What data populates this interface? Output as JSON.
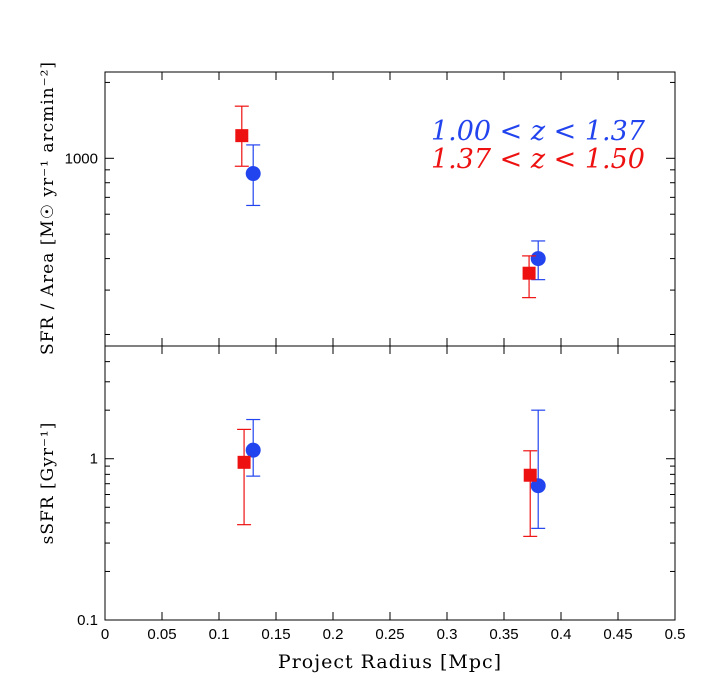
{
  "chart_data": [
    {
      "type": "scatter",
      "panel": "top",
      "scale": "log",
      "ylabel": "SFR / Area [M☉ yr⁻¹ arcmin⁻²]",
      "ylim": [
        180,
        2200
      ],
      "ytick_labels": [
        {
          "value": 1000,
          "label": "1000"
        }
      ],
      "xlim": [
        0,
        0.5
      ],
      "series": [
        {
          "name": "1.00 < z < 1.37",
          "color": "#2244ee",
          "marker": "circle",
          "points": [
            {
              "x": 0.13,
              "y": 870,
              "lo": 650,
              "hi": 1130
            },
            {
              "x": 0.38,
              "y": 400,
              "lo": 330,
              "hi": 470
            }
          ]
        },
        {
          "name": "1.37 < z < 1.50",
          "color": "#ee1111",
          "marker": "square",
          "points": [
            {
              "x": 0.12,
              "y": 1230,
              "lo": 930,
              "hi": 1610
            },
            {
              "x": 0.372,
              "y": 350,
              "lo": 280,
              "hi": 410
            }
          ]
        }
      ]
    },
    {
      "type": "scatter",
      "panel": "bottom",
      "scale": "log",
      "ylabel": "sSFR [Gyr⁻¹]",
      "ylim": [
        0.1,
        5
      ],
      "ytick_labels": [
        {
          "value": 0.1,
          "label": "0.1"
        },
        {
          "value": 1,
          "label": "1"
        }
      ],
      "xlabel": "Project Radius [Mpc]",
      "xlim": [
        0,
        0.5
      ],
      "xticks": [
        0,
        0.05,
        0.1,
        0.15,
        0.2,
        0.25,
        0.3,
        0.35,
        0.4,
        0.45,
        0.5
      ],
      "xtick_labels": [
        "0",
        "0.05",
        "0.1",
        "0.15",
        "0.2",
        "0.25",
        "0.3",
        "0.35",
        "0.4",
        "0.45",
        "0.5"
      ],
      "series": [
        {
          "name": "1.00 < z < 1.37",
          "color": "#2244ee",
          "marker": "circle",
          "points": [
            {
              "x": 0.13,
              "y": 1.13,
              "lo": 0.78,
              "hi": 1.75
            },
            {
              "x": 0.38,
              "y": 0.68,
              "lo": 0.37,
              "hi": 2.0
            }
          ]
        },
        {
          "name": "1.37 < z < 1.50",
          "color": "#ee1111",
          "marker": "square",
          "points": [
            {
              "x": 0.122,
              "y": 0.95,
              "lo": 0.39,
              "hi": 1.52
            },
            {
              "x": 0.373,
              "y": 0.79,
              "lo": 0.33,
              "hi": 1.12
            }
          ]
        }
      ]
    }
  ],
  "legend": {
    "entries": [
      {
        "text": "1.00 < z < 1.37",
        "color": "#2244ee"
      },
      {
        "text": "1.37 < z < 1.50",
        "color": "#ee1111"
      }
    ]
  }
}
